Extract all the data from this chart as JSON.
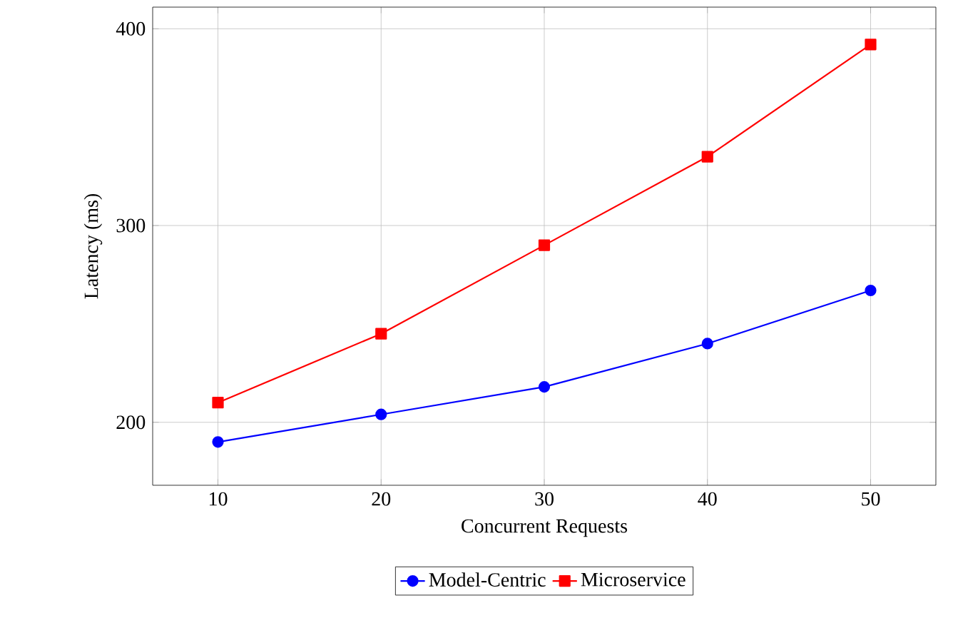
{
  "chart_data": {
    "type": "line",
    "xlabel": "Concurrent Requests",
    "ylabel": "Latency (ms)",
    "x": [
      10,
      20,
      30,
      40,
      50
    ],
    "series": [
      {
        "name": "Model-Centric",
        "color": "#0000ff",
        "marker": "circle",
        "values": [
          190,
          204,
          218,
          240,
          267
        ]
      },
      {
        "name": "Microservice",
        "color": "#ff0000",
        "marker": "square",
        "values": [
          210,
          245,
          290,
          335,
          392
        ]
      }
    ],
    "xlim": [
      6,
      54
    ],
    "ylim": [
      168,
      411
    ],
    "xticks": [
      10,
      20,
      30,
      40,
      50
    ],
    "yticks": [
      200,
      300,
      400
    ],
    "grid": true,
    "legend": "bottom",
    "line_style": "solid"
  }
}
